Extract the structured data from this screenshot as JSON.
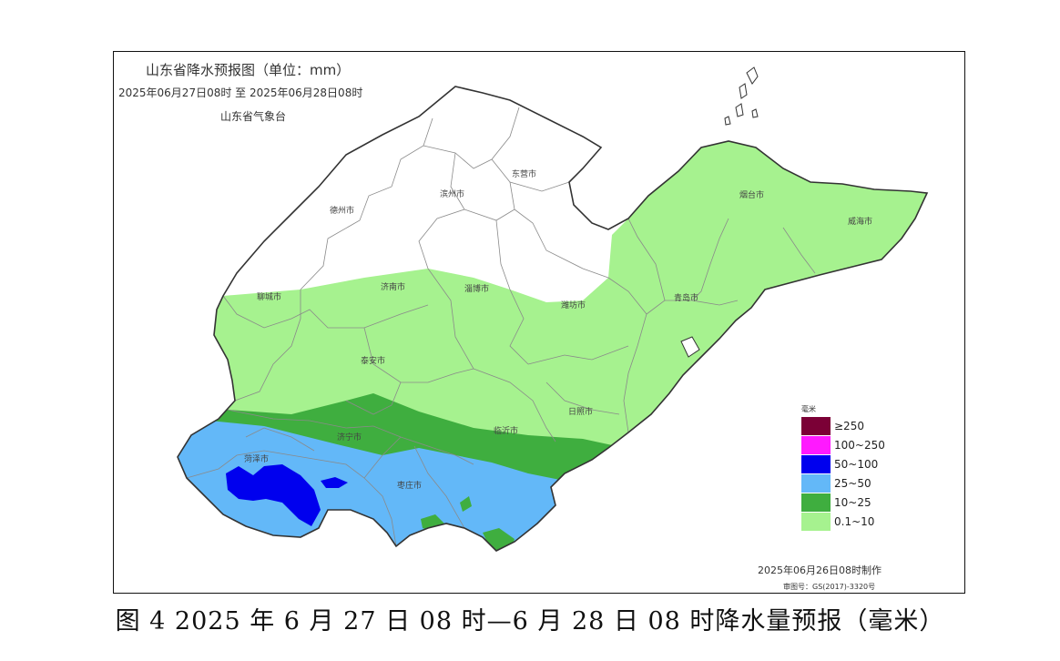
{
  "map": {
    "title": "山东省降水预报图（单位：mm）",
    "time_range": "2025年06月27日08时  至  2025年06月28日08时",
    "issuer": "山东省气象台",
    "cities": [
      {
        "name": "东营市"
      },
      {
        "name": "滨州市"
      },
      {
        "name": "德州市"
      },
      {
        "name": "烟台市"
      },
      {
        "name": "威海市"
      },
      {
        "name": "聊城市"
      },
      {
        "name": "济南市"
      },
      {
        "name": "淄博市"
      },
      {
        "name": "潍坊市"
      },
      {
        "name": "青岛市"
      },
      {
        "name": "泰安市"
      },
      {
        "name": "日照市"
      },
      {
        "name": "济宁市"
      },
      {
        "name": "临沂市"
      },
      {
        "name": "菏泽市"
      },
      {
        "name": "枣庄市"
      }
    ],
    "legend": {
      "unit": "毫米",
      "items": [
        {
          "label": "≥250",
          "color": "#7b0036"
        },
        {
          "label": "100~250",
          "color": "#ff19ff"
        },
        {
          "label": "50~100",
          "color": "#0000ee"
        },
        {
          "label": "25~50",
          "color": "#63b8f8"
        },
        {
          "label": "10~25",
          "color": "#3fae3f"
        },
        {
          "label": "0.1~10",
          "color": "#a6f28f"
        }
      ]
    },
    "made_time": "2025年06月26日08时制作",
    "review_no": "审图号：GS(2017)-3320号"
  },
  "caption": "图 4  2025 年 6 月 27 日 08 时—6 月 28 日 08 时降水量预报（毫米）"
}
